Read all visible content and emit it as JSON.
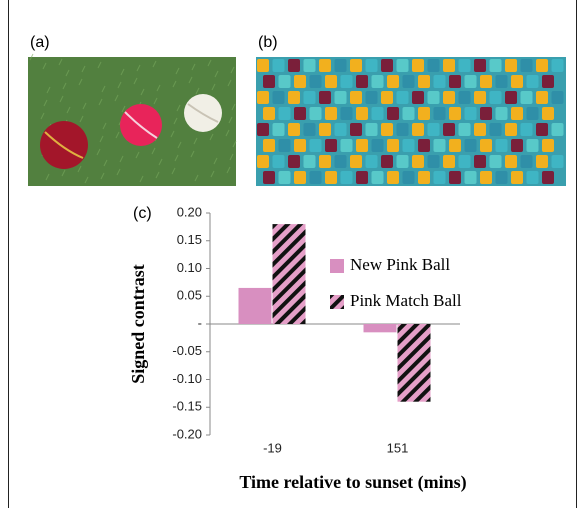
{
  "panel_labels": [
    "(a)",
    "(b)"
  ],
  "chart_data": {
    "type": "bar",
    "panel_label": "(c)",
    "categories": [
      "-19",
      "151"
    ],
    "series": [
      {
        "name": "New Pink Ball",
        "color": "#d88fc0",
        "values": [
          0.065,
          -0.015
        ]
      },
      {
        "name": "Pink Match Ball",
        "color": "#e59fc8",
        "hatch": "diagonal",
        "values": [
          0.18,
          -0.14
        ]
      }
    ],
    "x_label": "Time relative to sunset (mins)",
    "y_label": "Signed contrast",
    "ylim": [
      -0.2,
      0.2
    ],
    "yticks": [
      {
        "value": 0.2,
        "label": "0.20"
      },
      0.15,
      {
        "value": 0.1,
        "label": "0.10"
      },
      0.05,
      {
        "value": 0,
        "label": "-"
      },
      -0.05,
      {
        "value": -0.1,
        "label": "-0.10"
      },
      -0.15,
      {
        "value": -0.2,
        "label": "-0.20"
      }
    ],
    "legend": "upper right"
  }
}
